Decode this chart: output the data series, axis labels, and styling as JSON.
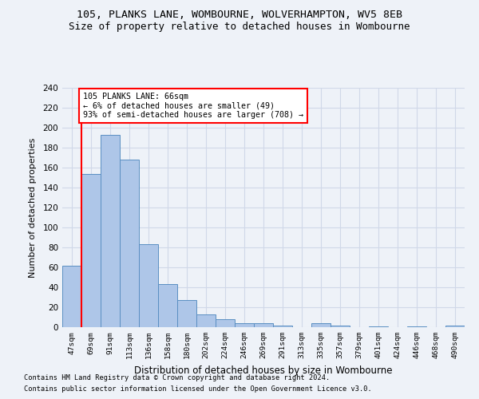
{
  "title1": "105, PLANKS LANE, WOMBOURNE, WOLVERHAMPTON, WV5 8EB",
  "title2": "Size of property relative to detached houses in Wombourne",
  "xlabel": "Distribution of detached houses by size in Wombourne",
  "ylabel": "Number of detached properties",
  "categories": [
    "47sqm",
    "69sqm",
    "91sqm",
    "113sqm",
    "136sqm",
    "158sqm",
    "180sqm",
    "202sqm",
    "224sqm",
    "246sqm",
    "269sqm",
    "291sqm",
    "313sqm",
    "335sqm",
    "357sqm",
    "379sqm",
    "401sqm",
    "424sqm",
    "446sqm",
    "468sqm",
    "490sqm"
  ],
  "values": [
    62,
    154,
    193,
    168,
    83,
    43,
    27,
    13,
    8,
    4,
    4,
    2,
    0,
    4,
    2,
    0,
    1,
    0,
    1,
    0,
    2
  ],
  "bar_color": "#aec6e8",
  "bar_edge_color": "#5a8fc2",
  "grid_color": "#d0d8e8",
  "annotation_box_text_line1": "105 PLANKS LANE: 66sqm",
  "annotation_box_text_line2": "← 6% of detached houses are smaller (49)",
  "annotation_box_text_line3": "93% of semi-detached houses are larger (708) →",
  "annotation_box_color": "white",
  "annotation_box_edge_color": "red",
  "red_line_x": 0.5,
  "ylim": [
    0,
    240
  ],
  "yticks": [
    0,
    20,
    40,
    60,
    80,
    100,
    120,
    140,
    160,
    180,
    200,
    220,
    240
  ],
  "footnote1": "Contains HM Land Registry data © Crown copyright and database right 2024.",
  "footnote2": "Contains public sector information licensed under the Open Government Licence v3.0.",
  "background_color": "#eef2f8"
}
